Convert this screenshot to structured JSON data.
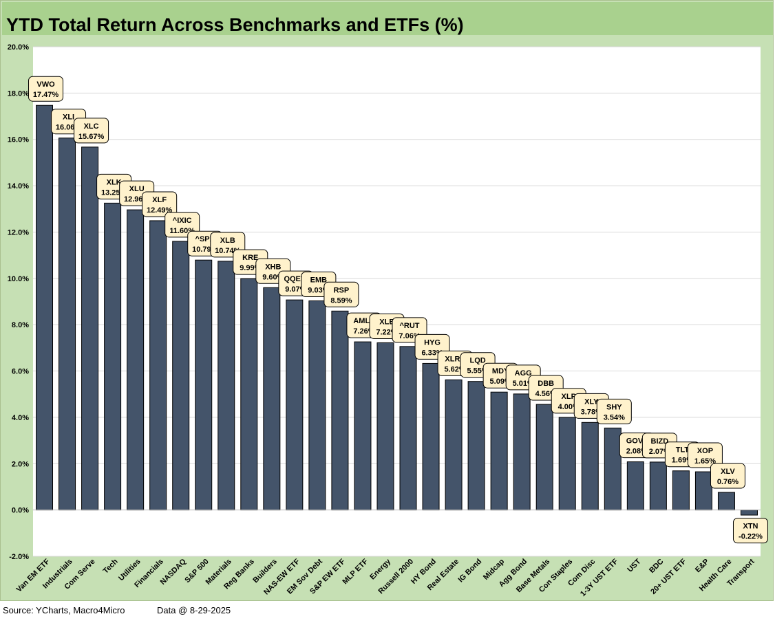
{
  "title": "YTD Total Return Across Benchmarks and ETFs (%)",
  "footer": {
    "source": "Source: YCharts, Macro4Micro",
    "as_of": "Data @ 8-29-2025"
  },
  "colors": {
    "bar": "#44546a",
    "label_bg": "#fff2cc",
    "plot_bg": "#ffffff",
    "frame_bg": "#c6e0b4",
    "title_bg": "#a9d18e"
  },
  "chart_data": {
    "type": "bar",
    "title": "YTD Total Return Across Benchmarks and ETFs (%)",
    "xlabel": "",
    "ylabel": "",
    "ylim": [
      -2,
      20
    ],
    "yticks": [
      -2,
      0,
      2,
      4,
      6,
      8,
      10,
      12,
      14,
      16,
      18,
      20
    ],
    "ytick_labels": [
      "-2.0%",
      "0.0%",
      "2.0%",
      "4.0%",
      "6.0%",
      "8.0%",
      "10.0%",
      "12.0%",
      "14.0%",
      "16.0%",
      "18.0%",
      "20.0%"
    ],
    "grid": true,
    "legend": "none",
    "categories": [
      "Van EM ETF",
      "Industrials",
      "Com Serve",
      "Tech",
      "Utilities",
      "Financials",
      "NASDAQ",
      "S&P 500",
      "Materials",
      "Reg Banks",
      "Builders",
      "NAS-EW ETF",
      "EM Sov Debt",
      "S&P EW ETF",
      "MLP ETF",
      "Energy",
      "Russell 2000",
      "HY Bond",
      "Real Estate",
      "IG Bond",
      "Midcap",
      "Agg Bond",
      "Base Metals",
      "Con Staples",
      "Com Disc",
      "1-3Y UST ETF",
      "UST",
      "BDC",
      "20+ UST ETF",
      "E&P",
      "Health Care",
      "Transport"
    ],
    "tickers": [
      "VWO",
      "XLI",
      "XLC",
      "XLK",
      "XLU",
      "XLF",
      "^IXIC",
      "^SPX",
      "XLB",
      "KRE",
      "XHB",
      "QQEW",
      "EMB",
      "RSP",
      "AMLP",
      "XLE",
      "^RUT",
      "HYG",
      "XLRE",
      "LQD",
      "MDY",
      "AGG",
      "DBB",
      "XLP",
      "XLY",
      "SHY",
      "GOVT",
      "BIZD",
      "TLT",
      "XOP",
      "XLV",
      "XTN"
    ],
    "values": [
      17.47,
      16.06,
      15.67,
      13.25,
      12.96,
      12.49,
      11.6,
      10.79,
      10.74,
      9.99,
      9.6,
      9.07,
      9.03,
      8.59,
      7.26,
      7.22,
      7.06,
      6.33,
      5.62,
      5.55,
      5.09,
      5.01,
      4.56,
      4.0,
      3.78,
      3.54,
      2.08,
      2.07,
      1.69,
      1.65,
      0.76,
      -0.22
    ],
    "value_labels": [
      "17.47%",
      "16.06%",
      "15.67%",
      "13.25%",
      "12.96%",
      "12.49%",
      "11.60%",
      "10.79%",
      "10.74%",
      "9.99%",
      "9.60%",
      "9.07%",
      "9.03%",
      "8.59%",
      "7.26%",
      "7.22%",
      "7.06%",
      "6.33%",
      "5.62%",
      "5.55%",
      "5.09%",
      "5.01%",
      "4.56%",
      "4.00%",
      "3.78%",
      "3.54%",
      "2.08%",
      "2.07%",
      "1.69%",
      "1.65%",
      "0.76%",
      "-0.22%"
    ]
  }
}
